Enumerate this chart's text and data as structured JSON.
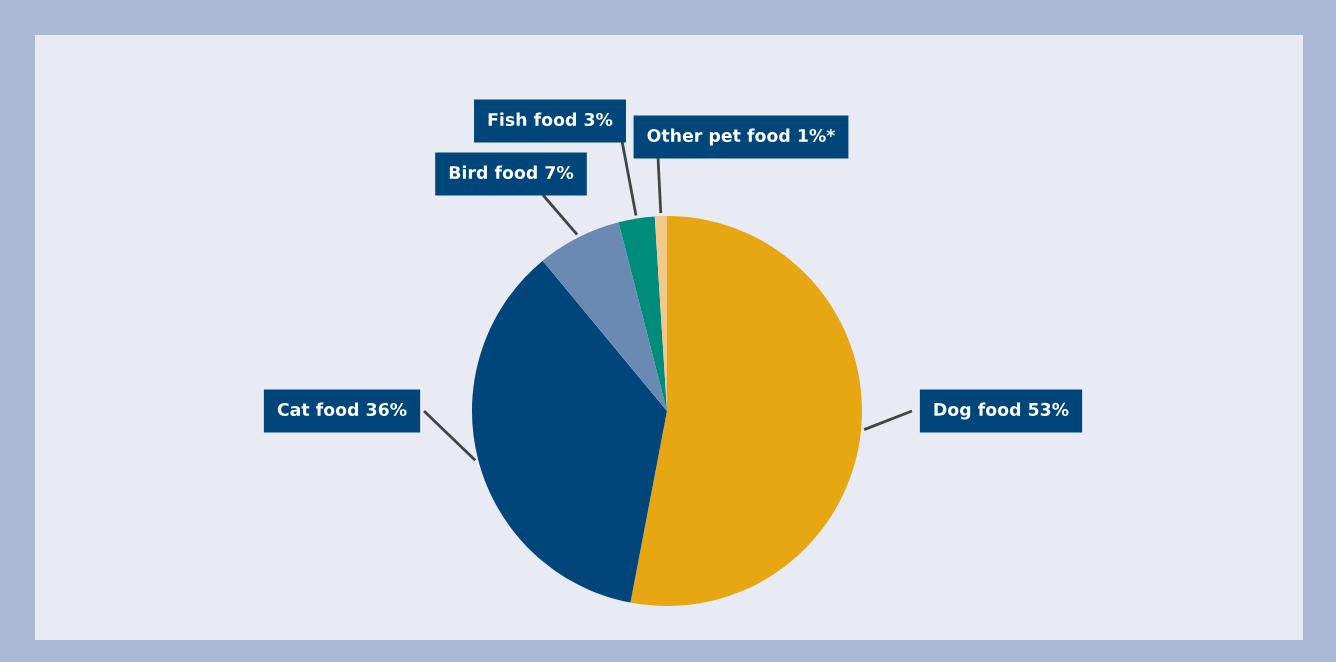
{
  "chart_data": {
    "type": "pie",
    "categories": [
      "Dog food",
      "Cat food",
      "Bird food",
      "Fish food",
      "Other pet food"
    ],
    "values": [
      53,
      36,
      7,
      3,
      1
    ],
    "value_labels": [
      "53%",
      "36%",
      "7%",
      "3%",
      "1%*"
    ],
    "colors": [
      "#e6a713",
      "#00467b",
      "#6b8ab3",
      "#008c7a",
      "#f3c98a"
    ],
    "legend": false
  }
}
